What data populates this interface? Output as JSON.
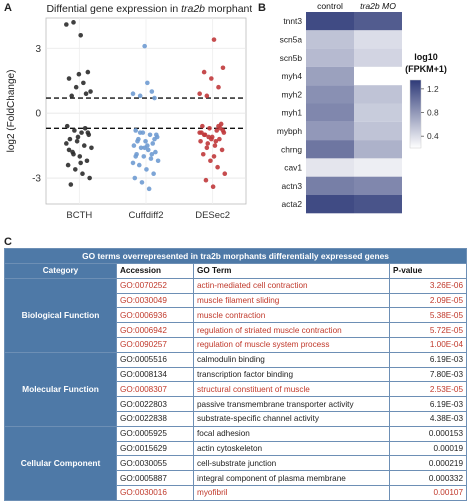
{
  "panels": {
    "a": "A",
    "b": "B",
    "c": "C"
  },
  "chart_data": {
    "type": "scatter",
    "title": "Diffential gene expression in tra2b morphants",
    "title_prefix": "Diffential gene expression in ",
    "title_italic": "tra2b",
    "title_suffix": " morphants",
    "ylabel": "log2 (FoldChange)",
    "xlabel": "",
    "categories": [
      "BCTH",
      "Cuffdiff2",
      "DESec2"
    ],
    "ylim": [
      -4.2,
      4.4
    ],
    "yticks": [
      "3",
      "0",
      "-3"
    ],
    "threshold_lines": [
      0.7,
      -0.7
    ],
    "grid": true,
    "series": [
      {
        "category": "BCTH",
        "color": "#2b2b2b",
        "y": [
          4.1,
          4.2,
          3.6,
          1.9,
          1.6,
          1.2,
          1.4,
          1.0,
          0.8,
          1.8,
          0.9,
          -0.6,
          -0.8,
          -0.9,
          -1.0,
          -1.2,
          -1.3,
          -1.5,
          -1.6,
          -1.8,
          -2.0,
          -2.2,
          -2.4,
          -2.6,
          -2.8,
          -3.0,
          -3.3,
          -1.1,
          -0.7,
          -1.4,
          -1.9,
          -2.3,
          -0.9,
          -1.7
        ]
      },
      {
        "category": "Cuffdiff2",
        "color": "#6f9bd1",
        "y": [
          3.1,
          1.0,
          0.9,
          0.8,
          1.4,
          0.7,
          -0.8,
          -0.9,
          -1.0,
          -1.1,
          -1.2,
          -1.3,
          -1.4,
          -1.5,
          -1.6,
          -1.7,
          -1.8,
          -1.9,
          -2.0,
          -2.1,
          -2.2,
          -2.4,
          -2.6,
          -2.8,
          -3.0,
          -3.2,
          -3.5,
          -1.0,
          -1.3,
          -1.6,
          -1.9,
          -2.3,
          -0.9,
          -1.5,
          -1.2,
          -2.0
        ]
      },
      {
        "category": "DESec2",
        "color": "#c0393b",
        "y": [
          2.1,
          1.9,
          1.6,
          1.2,
          0.9,
          0.8,
          3.4,
          -0.5,
          -0.6,
          -0.7,
          -0.8,
          -0.9,
          -1.0,
          -1.1,
          -1.2,
          -1.3,
          -1.4,
          -1.5,
          -1.7,
          -1.9,
          -2.2,
          -2.5,
          -2.8,
          -3.1,
          -3.4,
          -0.7,
          -0.9,
          -1.1,
          -1.3,
          -0.8,
          -1.0,
          -1.2,
          -0.6,
          -0.9,
          -1.6,
          -2.0
        ]
      }
    ]
  },
  "heatmap": {
    "type": "heatmap",
    "columns": [
      {
        "text": "control",
        "italic": false
      },
      {
        "text": "tra2b MO",
        "italic": true
      }
    ],
    "rows": [
      "tnnt3",
      "scn5a",
      "scn5b",
      "myh4",
      "myh2",
      "myh1",
      "mybph",
      "chrng",
      "cav1",
      "actn3",
      "acta2"
    ],
    "values": [
      [
        1.25,
        1.15
      ],
      [
        0.55,
        0.4
      ],
      [
        0.6,
        0.45
      ],
      [
        0.75,
        0.2
      ],
      [
        0.85,
        0.55
      ],
      [
        0.9,
        0.5
      ],
      [
        0.8,
        0.55
      ],
      [
        1.0,
        0.65
      ],
      [
        0.35,
        0.3
      ],
      [
        0.95,
        0.9
      ],
      [
        1.25,
        1.2
      ]
    ],
    "legend_title_1": "log10",
    "legend_title_2": "(FPKM+1)",
    "legend_ticks": [
      "1.2",
      "0.8",
      "0.4"
    ],
    "legend_tick_values": [
      1.2,
      0.8,
      0.4
    ],
    "scale_range": [
      0.2,
      1.35
    ],
    "color_low": "#ffffff",
    "color_high": "#2e3a78"
  },
  "table": {
    "title": "GO terms overrepresented in tra2b morphants differentially expressed genes",
    "headers": {
      "category": "Category",
      "accession": "Accession",
      "term": "GO Term",
      "pvalue": "P-value"
    },
    "groups": [
      {
        "category": "Biological Function",
        "rows": [
          {
            "accession": "GO:0070252",
            "term": "actin-mediated cell contraction",
            "pvalue": "3.26E-06",
            "highlight": true
          },
          {
            "accession": "GO:0030049",
            "term": "muscle filament sliding",
            "pvalue": "2.09E-05",
            "highlight": true
          },
          {
            "accession": "GO:0006936",
            "term": "muscle contraction",
            "pvalue": "5.38E-05",
            "highlight": true
          },
          {
            "accession": "GO:0006942",
            "term": "regulation of striated muscle contraction",
            "pvalue": "5.72E-05",
            "highlight": true
          },
          {
            "accession": "GO:0090257",
            "term": "regulation of muscle system process",
            "pvalue": "1.00E-04",
            "highlight": true
          }
        ]
      },
      {
        "category": "Molecular Function",
        "rows": [
          {
            "accession": "GO:0005516",
            "term": "calmodulin binding",
            "pvalue": "6.19E-03",
            "highlight": false
          },
          {
            "accession": "GO:0008134",
            "term": "transcription factor binding",
            "pvalue": "7.80E-03",
            "highlight": false
          },
          {
            "accession": "GO:0008307",
            "term": "structural constituent of muscle",
            "pvalue": "2.53E-05",
            "highlight": true
          },
          {
            "accession": "GO:0022803",
            "term": "passive transmembrane transporter activity",
            "pvalue": "6.19E-03",
            "highlight": false
          },
          {
            "accession": "GO:0022838",
            "term": "substrate-specific channel activity",
            "pvalue": "4.38E-03",
            "highlight": false
          }
        ]
      },
      {
        "category": "Cellular Component",
        "rows": [
          {
            "accession": "GO:0005925",
            "term": "focal adhesion",
            "pvalue": "0.000153",
            "highlight": false
          },
          {
            "accession": "GO:0015629",
            "term": "actin cytoskeleton",
            "pvalue": "0.00019",
            "highlight": false
          },
          {
            "accession": "GO:0030055",
            "term": "cell-substrate junction",
            "pvalue": "0.000219",
            "highlight": false
          },
          {
            "accession": "GO:0005887",
            "term": "integral component of plasma membrane",
            "pvalue": "0.000332",
            "highlight": false
          },
          {
            "accession": "GO:0030016",
            "term": "myofibril",
            "pvalue": "0.00107",
            "highlight": true
          }
        ]
      }
    ],
    "header_color": "#4e79a7",
    "highlight_color": "#c0392b"
  }
}
